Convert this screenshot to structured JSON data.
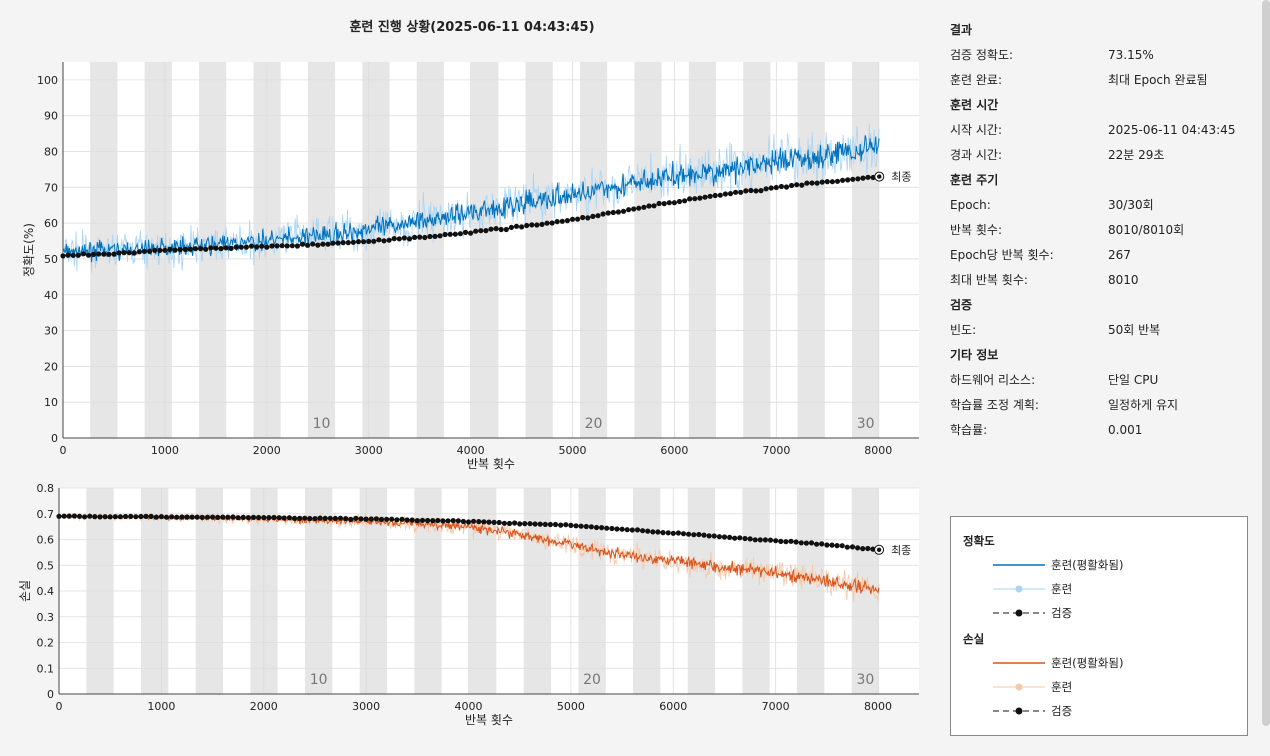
{
  "title": "훈련 진행 상황(2025-06-11 04:43:45)",
  "final_label": "최종",
  "summary": {
    "result": {
      "heading": "결과",
      "rows": [
        {
          "label": "검증 정확도:",
          "value": "73.15%"
        },
        {
          "label": "훈련 완료:",
          "value": "최대 Epoch 완료됨"
        }
      ]
    },
    "time": {
      "heading": "훈련 시간",
      "rows": [
        {
          "label": "시작 시간:",
          "value": "2025-06-11 04:43:45"
        },
        {
          "label": "경과 시간:",
          "value": "22분 29초"
        }
      ]
    },
    "cycle": {
      "heading": "훈련 주기",
      "rows": [
        {
          "label": "Epoch:",
          "value": "30/30회"
        },
        {
          "label": "반복 횟수:",
          "value": "8010/8010회"
        },
        {
          "label": "Epoch당 반복 횟수:",
          "value": "267"
        },
        {
          "label": "최대 반복 횟수:",
          "value": "8010"
        }
      ]
    },
    "validation": {
      "heading": "검증",
      "rows": [
        {
          "label": "빈도:",
          "value": "50회 반복"
        }
      ]
    },
    "other": {
      "heading": "기타 정보",
      "rows": [
        {
          "label": "하드웨어 리소스:",
          "value": "단일 CPU"
        },
        {
          "label": "학습률 조정 계획:",
          "value": "일정하게 유지"
        },
        {
          "label": "학습률:",
          "value": "0.001"
        }
      ]
    }
  },
  "legend": {
    "accuracy_heading": "정확도",
    "loss_heading": "손실",
    "smoothed": "훈련(평활화됨)",
    "train": "훈련",
    "validation": "검증"
  },
  "colors": {
    "acc_smooth": "#0072bd",
    "acc_raw": "#a9d4f5",
    "loss_smooth": "#d95319",
    "loss_raw": "#f7c7a8",
    "validation": "#111111",
    "epoch_band": "#e6e6e6"
  },
  "chart_data": [
    {
      "type": "line",
      "xlabel": "반복 횟수",
      "ylabel": "정확도(%)",
      "xlim": [
        0,
        8400
      ],
      "ylim": [
        0,
        105
      ],
      "xticks": [
        0,
        1000,
        2000,
        3000,
        4000,
        5000,
        6000,
        7000,
        8000
      ],
      "yticks": [
        0,
        10,
        20,
        30,
        40,
        50,
        60,
        70,
        80,
        90,
        100
      ],
      "epoch_labels": [
        {
          "epoch": 10,
          "text": "10"
        },
        {
          "epoch": 20,
          "text": "20"
        },
        {
          "epoch": 30,
          "text": "30"
        }
      ],
      "iterations_per_epoch": 267,
      "total_iterations": 8010,
      "series": [
        {
          "name": "훈련(평활화됨)",
          "x": [
            0,
            1000,
            2000,
            3000,
            4000,
            5000,
            6000,
            7000,
            8000
          ],
          "values": [
            52,
            53,
            55,
            58,
            63,
            68,
            73,
            77,
            81
          ]
        },
        {
          "name": "검증",
          "x": [
            0,
            500,
            1000,
            1500,
            2000,
            2500,
            3000,
            3500,
            4000,
            4500,
            5000,
            5500,
            6000,
            6500,
            7000,
            7500,
            8000
          ],
          "values": [
            51,
            51.5,
            52.5,
            53,
            53.5,
            54,
            55,
            56,
            57.5,
            59,
            61,
            63.5,
            66,
            68,
            70,
            71.5,
            73
          ]
        }
      ]
    },
    {
      "type": "line",
      "xlabel": "반복 횟수",
      "ylabel": "손실",
      "xlim": [
        0,
        8400
      ],
      "ylim": [
        0,
        0.8
      ],
      "xticks": [
        0,
        1000,
        2000,
        3000,
        4000,
        5000,
        6000,
        7000,
        8000
      ],
      "yticks": [
        0,
        0.1,
        0.2,
        0.3,
        0.4,
        0.5,
        0.6,
        0.7,
        0.8
      ],
      "epoch_labels": [
        {
          "epoch": 10,
          "text": "10"
        },
        {
          "epoch": 20,
          "text": "20"
        },
        {
          "epoch": 30,
          "text": "30"
        }
      ],
      "iterations_per_epoch": 267,
      "total_iterations": 8010,
      "series": [
        {
          "name": "훈련(평활화됨)",
          "x": [
            0,
            1000,
            2000,
            3000,
            3500,
            4000,
            4500,
            5000,
            5500,
            6000,
            6500,
            7000,
            7500,
            8000
          ],
          "values": [
            0.69,
            0.685,
            0.68,
            0.67,
            0.66,
            0.65,
            0.62,
            0.58,
            0.54,
            0.52,
            0.49,
            0.47,
            0.44,
            0.41
          ]
        },
        {
          "name": "검증",
          "x": [
            0,
            1000,
            2000,
            3000,
            4000,
            5000,
            5500,
            6000,
            6500,
            7000,
            7500,
            8000
          ],
          "values": [
            0.69,
            0.688,
            0.685,
            0.68,
            0.67,
            0.655,
            0.64,
            0.625,
            0.61,
            0.595,
            0.58,
            0.56
          ]
        }
      ]
    }
  ]
}
